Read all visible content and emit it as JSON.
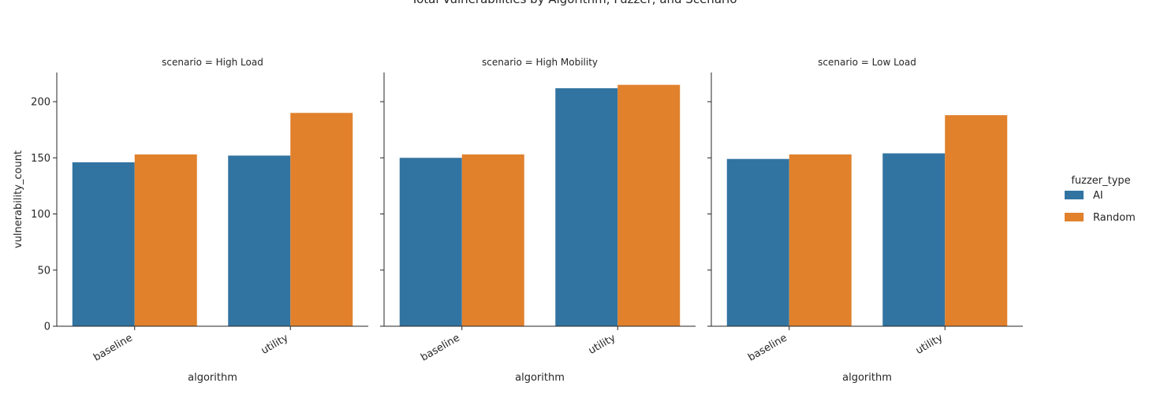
{
  "chart_data": {
    "type": "bar",
    "title": "Total Vulnerabilities by Algorithm, Fuzzer, and Scenario",
    "xlabel": "algorithm",
    "ylabel": "vulnerability_count",
    "ylim": [
      0,
      226
    ],
    "yticks": [
      0,
      50,
      100,
      150,
      200
    ],
    "categories": [
      "baseline",
      "utility"
    ],
    "legend": {
      "title": "fuzzer_type",
      "placement": "right"
    },
    "series_colors": {
      "AI": "#3274a1",
      "Random": "#e1812c"
    },
    "panels": [
      {
        "title": "scenario = High Load",
        "series": [
          {
            "name": "AI",
            "values": [
              146,
              152
            ]
          },
          {
            "name": "Random",
            "values": [
              153,
              190
            ]
          }
        ]
      },
      {
        "title": "scenario = High Mobility",
        "series": [
          {
            "name": "AI",
            "values": [
              150,
              212
            ]
          },
          {
            "name": "Random",
            "values": [
              153,
              215
            ]
          }
        ]
      },
      {
        "title": "scenario = Low Load",
        "series": [
          {
            "name": "AI",
            "values": [
              149,
              154
            ]
          },
          {
            "name": "Random",
            "values": [
              153,
              188
            ]
          }
        ]
      }
    ]
  }
}
